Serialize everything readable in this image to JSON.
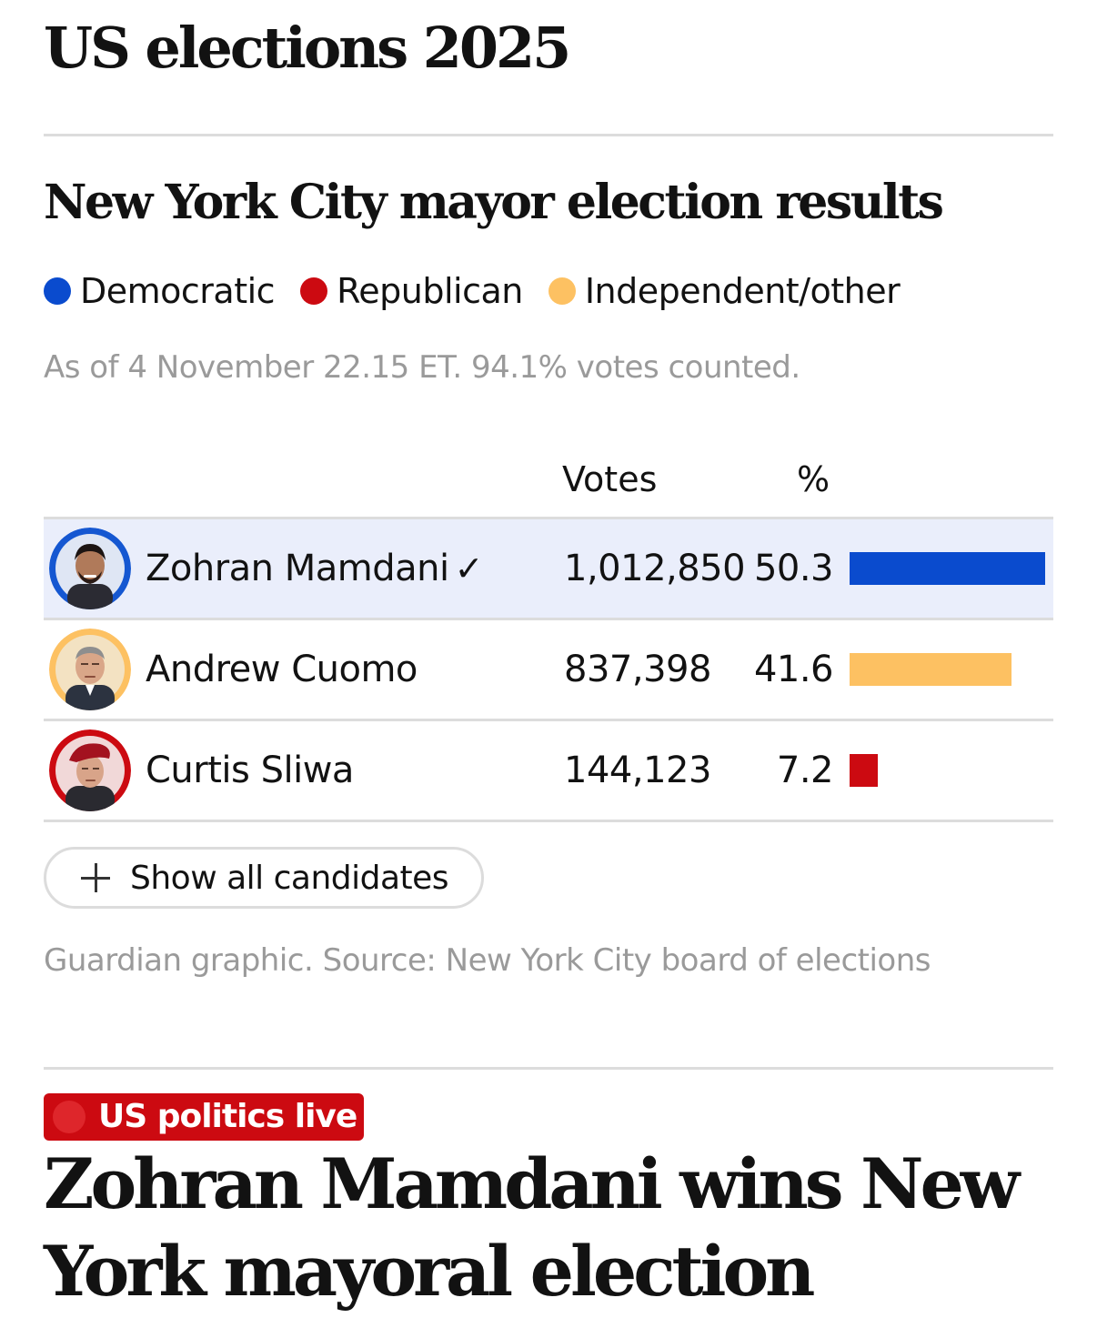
{
  "page": {
    "title": "US elections 2025"
  },
  "widget": {
    "title": "New York City mayor election results",
    "legend": [
      {
        "label": "Democratic",
        "color": "#0a4bce"
      },
      {
        "label": "Republican",
        "color": "#cc0a11"
      },
      {
        "label": "Independent/other",
        "color": "#fdc162"
      }
    ],
    "timestamp": "As of 4 November 22.15 ET. 94.1% votes counted.",
    "columns": {
      "votes": "Votes",
      "pct": "%"
    },
    "candidates": [
      {
        "name": "Zohran Mamdani",
        "winner_mark": "✓",
        "votes": "1,012,850",
        "pct": "50.3",
        "party_color": "#0a4bce",
        "ring_color": "#1557d1",
        "share": 0.503
      },
      {
        "name": "Andrew Cuomo",
        "winner_mark": "",
        "votes": "837,398",
        "pct": "41.6",
        "party_color": "#fdc162",
        "ring_color": "#fdc162",
        "share": 0.416
      },
      {
        "name": "Curtis Sliwa",
        "winner_mark": "",
        "votes": "144,123",
        "pct": "7.2",
        "party_color": "#cc0a11",
        "ring_color": "#cc0a11",
        "share": 0.072
      }
    ],
    "show_all_label": "Show all candidates",
    "source": "Guardian graphic. Source: New York City board of elections"
  },
  "article": {
    "badge": "US politics live",
    "headline": "Zohran Mamdani wins New York mayoral election"
  },
  "chart_data": {
    "type": "bar",
    "categories": [
      "Zohran Mamdani",
      "Andrew Cuomo",
      "Curtis Sliwa"
    ],
    "values": [
      50.3,
      41.6,
      7.2
    ],
    "votes": [
      1012850,
      837398,
      144123
    ],
    "colors": [
      "#0a4bce",
      "#fdc162",
      "#cc0a11"
    ],
    "title": "New York City mayor election results",
    "xlabel": "",
    "ylabel": "%",
    "ylim": [
      0,
      100
    ]
  }
}
